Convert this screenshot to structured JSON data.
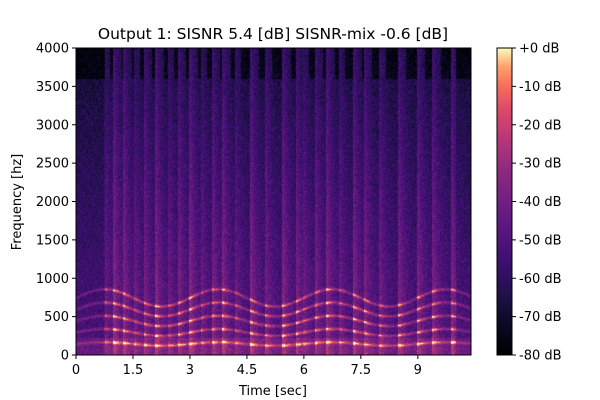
{
  "chart_data": {
    "type": "heatmap",
    "subtype": "spectrogram",
    "title": "Output 1: SISNR 5.4 [dB] SISNR-mix -0.6 [dB]",
    "xlabel": "Time [sec]",
    "ylabel": "Frequency [hz]",
    "xlim": [
      0,
      10.4
    ],
    "ylim": [
      0,
      4000
    ],
    "x_ticks": [
      0,
      1.5,
      3,
      4.5,
      6,
      7.5,
      9
    ],
    "x_tick_labels": [
      "0",
      "1.5",
      "3",
      "4.5",
      "6",
      "7.5",
      "9"
    ],
    "y_ticks": [
      0,
      500,
      1000,
      1500,
      2000,
      2500,
      3000,
      3500,
      4000
    ],
    "y_tick_labels": [
      "0",
      "500",
      "1000",
      "1500",
      "2000",
      "2500",
      "3000",
      "3500",
      "4000"
    ],
    "colormap": "magma",
    "colorbar": {
      "range_db": [
        -80,
        0
      ],
      "ticks": [
        0,
        -10,
        -20,
        -30,
        -40,
        -50,
        -60,
        -70,
        -80
      ],
      "tick_labels": [
        "+0 dB",
        "-10 dB",
        "-20 dB",
        "-30 dB",
        "-40 dB",
        "-50 dB",
        "-60 dB",
        "-70 dB",
        "-80 dB"
      ]
    },
    "grid": false,
    "speech_onsets_sec": [
      0.75,
      1.0,
      1.25,
      1.55,
      1.8,
      2.1,
      2.45,
      2.7,
      3.0,
      3.3,
      3.6,
      3.85,
      4.2,
      4.6,
      5.0,
      5.45,
      5.8,
      6.0,
      6.3,
      6.6,
      6.95,
      7.3,
      7.6,
      8.0,
      8.5,
      9.0,
      9.4,
      9.9
    ],
    "harmonic_band_hz": [
      150,
      300,
      450,
      600,
      750
    ]
  }
}
